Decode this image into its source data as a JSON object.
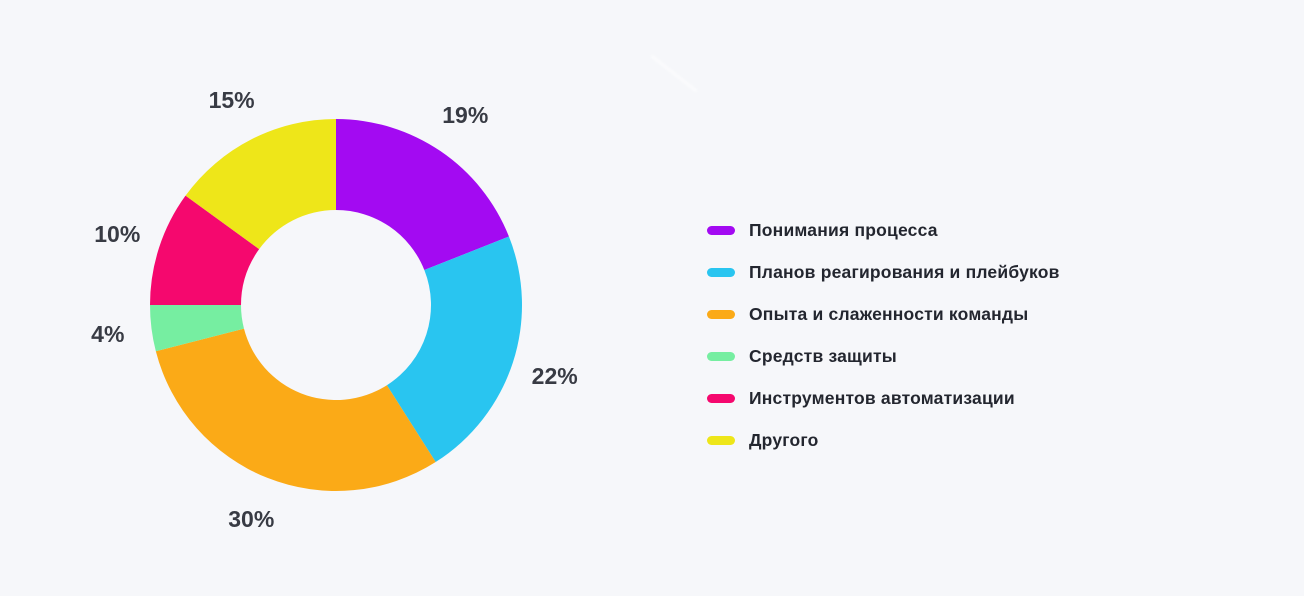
{
  "canvas": {
    "background_color": "#F6F7FA",
    "value_label_color": "#383B44",
    "legend_text_color": "#23262F"
  },
  "chart_data": {
    "type": "pie",
    "subtype": "donut",
    "title": "",
    "legend_position": "right",
    "start_angle": "top",
    "direction": "clockwise",
    "total": 100,
    "segments": [
      {
        "label": "Понимания процесса",
        "value": 19,
        "display": "19%",
        "color": "#A30AF2"
      },
      {
        "label": "Планов реагирования и плейбуков",
        "value": 22,
        "display": "22%",
        "color": "#29C5F0"
      },
      {
        "label": "Опыта и слаженности команды",
        "value": 30,
        "display": "30%",
        "color": "#FBAA17"
      },
      {
        "label": "Средств защиты",
        "value": 4,
        "display": "4%",
        "color": "#76EEA1"
      },
      {
        "label": "Инструментов автоматизации",
        "value": 10,
        "display": "10%",
        "color": "#F5086E"
      },
      {
        "label": "Другого",
        "value": 15,
        "display": "15%",
        "color": "#EEE619"
      }
    ]
  }
}
